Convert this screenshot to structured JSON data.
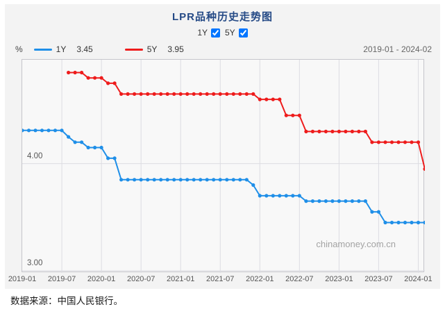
{
  "title": "LPR品种历史走势图",
  "controls": [
    {
      "label": "1Y",
      "checked": true
    },
    {
      "label": "5Y",
      "checked": true
    }
  ],
  "legend": {
    "unit": "%",
    "items": [
      {
        "name": "1Y",
        "value": "3.45",
        "color": "#1f8fe8"
      },
      {
        "name": "5Y",
        "value": "3.95",
        "color": "#ee1c1c"
      }
    ],
    "date_range": "2019-01 - 2024-02"
  },
  "watermark": "chinamoney.com.cn",
  "caption": "数据来源：中国人民银行。",
  "chart_data": {
    "type": "line",
    "title": "LPR品种历史走势图",
    "x_unit": "month",
    "x_range": [
      "2019-01",
      "2024-02"
    ],
    "x_months": [
      "2019-01",
      "2019-02",
      "2019-03",
      "2019-04",
      "2019-05",
      "2019-06",
      "2019-07",
      "2019-08",
      "2019-09",
      "2019-10",
      "2019-11",
      "2019-12",
      "2020-01",
      "2020-02",
      "2020-03",
      "2020-04",
      "2020-05",
      "2020-06",
      "2020-07",
      "2020-08",
      "2020-09",
      "2020-10",
      "2020-11",
      "2020-12",
      "2021-01",
      "2021-02",
      "2021-03",
      "2021-04",
      "2021-05",
      "2021-06",
      "2021-07",
      "2021-08",
      "2021-09",
      "2021-10",
      "2021-11",
      "2021-12",
      "2022-01",
      "2022-02",
      "2022-03",
      "2022-04",
      "2022-05",
      "2022-06",
      "2022-07",
      "2022-08",
      "2022-09",
      "2022-10",
      "2022-11",
      "2022-12",
      "2023-01",
      "2023-02",
      "2023-03",
      "2023-04",
      "2023-05",
      "2023-06",
      "2023-07",
      "2023-08",
      "2023-09",
      "2023-10",
      "2023-11",
      "2023-12",
      "2024-01",
      "2024-02"
    ],
    "x_tick_labels": [
      "2019-01",
      "2019-07",
      "2020-01",
      "2020-07",
      "2021-01",
      "2021-07",
      "2022-01",
      "2022-07",
      "2023-01",
      "2023-07",
      "2024-01"
    ],
    "x_tick_month_index": [
      0,
      6,
      12,
      18,
      24,
      30,
      36,
      42,
      48,
      54,
      60
    ],
    "ylim": [
      2.98,
      4.97
    ],
    "ylabel": "%",
    "y_tick_labels": [
      {
        "label": "4.00",
        "value": 4.0
      },
      {
        "label": "3.00",
        "value": 3.0
      }
    ],
    "grid": true,
    "legend_position": "top",
    "series": [
      {
        "name": "1Y",
        "color": "#1f8fe8",
        "latest": 3.45,
        "values": [
          4.31,
          4.31,
          4.31,
          4.31,
          4.31,
          4.31,
          4.31,
          4.25,
          4.2,
          4.2,
          4.15,
          4.15,
          4.15,
          4.05,
          4.05,
          3.85,
          3.85,
          3.85,
          3.85,
          3.85,
          3.85,
          3.85,
          3.85,
          3.85,
          3.85,
          3.85,
          3.85,
          3.85,
          3.85,
          3.85,
          3.85,
          3.85,
          3.85,
          3.85,
          3.85,
          3.8,
          3.7,
          3.7,
          3.7,
          3.7,
          3.7,
          3.7,
          3.7,
          3.65,
          3.65,
          3.65,
          3.65,
          3.65,
          3.65,
          3.65,
          3.65,
          3.65,
          3.65,
          3.55,
          3.55,
          3.45,
          3.45,
          3.45,
          3.45,
          3.45,
          3.45,
          3.45
        ]
      },
      {
        "name": "5Y",
        "color": "#ee1c1c",
        "latest": 3.95,
        "values": [
          null,
          null,
          null,
          null,
          null,
          null,
          null,
          4.85,
          4.85,
          4.85,
          4.8,
          4.8,
          4.8,
          4.75,
          4.75,
          4.65,
          4.65,
          4.65,
          4.65,
          4.65,
          4.65,
          4.65,
          4.65,
          4.65,
          4.65,
          4.65,
          4.65,
          4.65,
          4.65,
          4.65,
          4.65,
          4.65,
          4.65,
          4.65,
          4.65,
          4.65,
          4.6,
          4.6,
          4.6,
          4.6,
          4.45,
          4.45,
          4.45,
          4.3,
          4.3,
          4.3,
          4.3,
          4.3,
          4.3,
          4.3,
          4.3,
          4.3,
          4.3,
          4.2,
          4.2,
          4.2,
          4.2,
          4.2,
          4.2,
          4.2,
          4.2,
          3.95
        ]
      }
    ],
    "colors": {
      "grid": "#dcdce2",
      "border": "#c5c5cb",
      "plot_bg": "#f8f8f8",
      "panel_bg": "#f3f3f3"
    }
  }
}
